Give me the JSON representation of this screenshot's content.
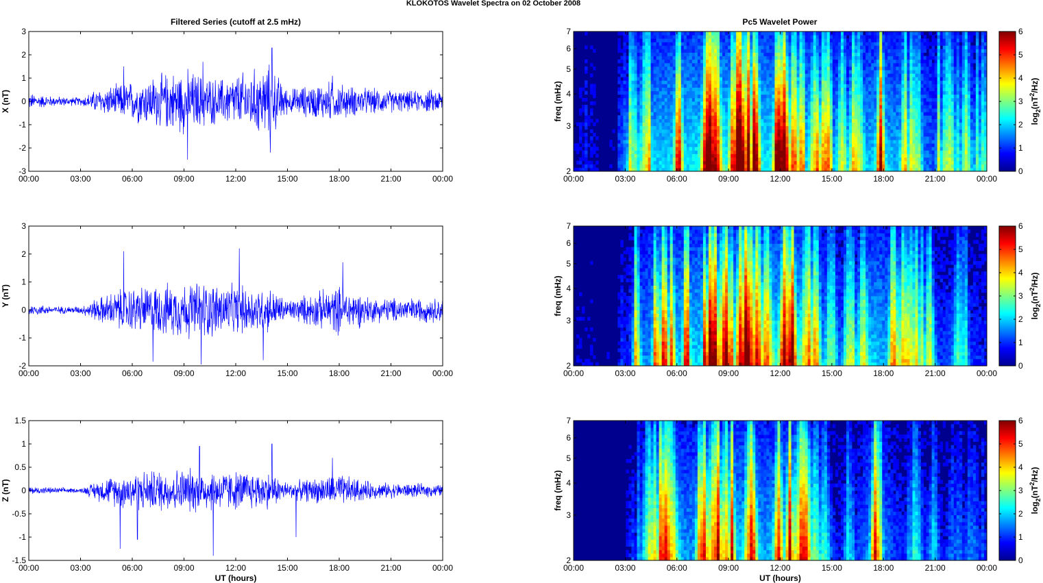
{
  "figure_title": "KLOKOTOS Wavelet Spectra on 02 October   2008",
  "left_title": "Filtered Series (cutoff at 2.5 mHz)",
  "right_title": "Pc5 Wavelet Power",
  "x_ticks": [
    "00:00",
    "03:00",
    "06:00",
    "09:00",
    "12:00",
    "15:00",
    "18:00",
    "21:00",
    "00:00"
  ],
  "x_label": "UT (hours)",
  "freq_label": "freq (mHz)",
  "freq_ticks": [
    "2",
    "3",
    "4",
    "5",
    "6",
    "7"
  ],
  "colorbar_label_main": "log",
  "colorbar_label_sub": "2",
  "colorbar_label_open": "(nT",
  "colorbar_label_sup": "2",
  "colorbar_label_close": "/Hz)",
  "colorbar_ticks": [
    "0",
    "1",
    "2",
    "3",
    "4",
    "5",
    "6"
  ],
  "colors": {
    "series_line": "#0000ff",
    "colormap": [
      "#00008f",
      "#0000ff",
      "#0080ff",
      "#00ffff",
      "#80ff80",
      "#ffff00",
      "#ff8000",
      "#ff0000",
      "#800000"
    ]
  },
  "chart_data": [
    {
      "type": "line",
      "panel": "X",
      "title": "Filtered Series (cutoff at 2.5 mHz)",
      "ylabel": "X (nT)",
      "xlabel": "",
      "xlim": [
        0,
        24
      ],
      "ylim": [
        -3,
        3
      ],
      "yticks": [
        "3",
        "2",
        "1",
        "0",
        "-1",
        "-2",
        "-3"
      ],
      "envelope": [
        {
          "x": 0,
          "amp": 0.4
        },
        {
          "x": 1.5,
          "amp": 0.25
        },
        {
          "x": 3,
          "amp": 0.2
        },
        {
          "x": 4,
          "amp": 0.6
        },
        {
          "x": 5.5,
          "amp": 0.9
        },
        {
          "x": 7,
          "amp": 1.2
        },
        {
          "x": 9,
          "amp": 1.6
        },
        {
          "x": 11,
          "amp": 1.1
        },
        {
          "x": 14,
          "amp": 1.8
        },
        {
          "x": 15,
          "amp": 0.6
        },
        {
          "x": 17.5,
          "amp": 1.0
        },
        {
          "x": 19,
          "amp": 0.7
        },
        {
          "x": 22,
          "amp": 0.5
        },
        {
          "x": 24,
          "amp": 0.6
        }
      ],
      "peaks": [
        {
          "x": 5.5,
          "y": 1.5
        },
        {
          "x": 9.2,
          "y": -2.5
        },
        {
          "x": 10.1,
          "y": 1.7
        },
        {
          "x": 14.1,
          "y": 2.3
        },
        {
          "x": 14.0,
          "y": -2.2
        },
        {
          "x": 17.6,
          "y": 1.1
        }
      ]
    },
    {
      "type": "line",
      "panel": "Y",
      "title": "",
      "ylabel": "Y (nT)",
      "xlabel": "",
      "xlim": [
        0,
        24
      ],
      "ylim": [
        -2,
        3
      ],
      "yticks": [
        "3",
        "2",
        "1",
        "0",
        "-1",
        "-2"
      ],
      "envelope": [
        {
          "x": 0,
          "amp": 0.25
        },
        {
          "x": 1.5,
          "amp": 0.15
        },
        {
          "x": 3,
          "amp": 0.15
        },
        {
          "x": 4,
          "amp": 0.5
        },
        {
          "x": 5.5,
          "amp": 0.9
        },
        {
          "x": 7,
          "amp": 1.0
        },
        {
          "x": 10,
          "amp": 1.2
        },
        {
          "x": 12,
          "amp": 1.0
        },
        {
          "x": 14,
          "amp": 0.9
        },
        {
          "x": 15,
          "amp": 0.4
        },
        {
          "x": 18,
          "amp": 1.0
        },
        {
          "x": 20,
          "amp": 0.5
        },
        {
          "x": 24,
          "amp": 0.5
        }
      ],
      "peaks": [
        {
          "x": 5.5,
          "y": 2.1
        },
        {
          "x": 7.2,
          "y": -1.85
        },
        {
          "x": 10.0,
          "y": -1.95
        },
        {
          "x": 12.2,
          "y": 2.2
        },
        {
          "x": 13.6,
          "y": -1.8
        },
        {
          "x": 18.2,
          "y": 1.7
        }
      ]
    },
    {
      "type": "line",
      "panel": "Z",
      "title": "",
      "ylabel": "Z (nT)",
      "xlabel": "UT (hours)",
      "xlim": [
        0,
        24
      ],
      "ylim": [
        -1.5,
        1.5
      ],
      "yticks": [
        "1.5",
        "1",
        "0.5",
        "0",
        "-0.5",
        "-1",
        "-1.5"
      ],
      "envelope": [
        {
          "x": 0,
          "amp": 0.1
        },
        {
          "x": 3,
          "amp": 0.05
        },
        {
          "x": 4,
          "amp": 0.25
        },
        {
          "x": 5.5,
          "amp": 0.45
        },
        {
          "x": 7,
          "amp": 0.5
        },
        {
          "x": 9,
          "amp": 0.55
        },
        {
          "x": 11,
          "amp": 0.5
        },
        {
          "x": 14,
          "amp": 0.45
        },
        {
          "x": 15,
          "amp": 0.2
        },
        {
          "x": 18,
          "amp": 0.4
        },
        {
          "x": 20,
          "amp": 0.2
        },
        {
          "x": 24,
          "amp": 0.15
        }
      ],
      "peaks": [
        {
          "x": 5.3,
          "y": -1.25
        },
        {
          "x": 6.3,
          "y": -1.05
        },
        {
          "x": 9.9,
          "y": 0.95
        },
        {
          "x": 10.7,
          "y": -1.4
        },
        {
          "x": 14.1,
          "y": 1.0
        },
        {
          "x": 15.5,
          "y": -1.0
        },
        {
          "x": 17.6,
          "y": 0.7
        }
      ]
    },
    {
      "type": "heatmap",
      "panel": "X",
      "title": "Pc5 Wavelet Power",
      "ylabel": "freq (mHz)",
      "xlim": [
        0,
        24
      ],
      "ylim": [
        2,
        7
      ],
      "yscale": "log",
      "clim": [
        0,
        6
      ],
      "colorbar_label": "log2(nT^2/Hz)",
      "activity": [
        {
          "x": 0,
          "level": 1.0
        },
        {
          "x": 2.5,
          "level": 0.6
        },
        {
          "x": 3.5,
          "level": 4.0
        },
        {
          "x": 5,
          "level": 5.5
        },
        {
          "x": 7,
          "level": 6.0
        },
        {
          "x": 10,
          "level": 6.2
        },
        {
          "x": 13,
          "level": 6.0
        },
        {
          "x": 14.5,
          "level": 4.5
        },
        {
          "x": 16,
          "level": 3.5
        },
        {
          "x": 17.5,
          "level": 5.5
        },
        {
          "x": 19,
          "level": 5.0
        },
        {
          "x": 21,
          "level": 3.5
        },
        {
          "x": 24,
          "level": 3.0
        }
      ]
    },
    {
      "type": "heatmap",
      "panel": "Y",
      "title": "",
      "ylabel": "freq (mHz)",
      "xlim": [
        0,
        24
      ],
      "ylim": [
        2,
        7
      ],
      "yscale": "log",
      "clim": [
        0,
        6
      ],
      "colorbar_label": "log2(nT^2/Hz)",
      "activity": [
        {
          "x": 0,
          "level": 0.6
        },
        {
          "x": 2.5,
          "level": 0.4
        },
        {
          "x": 3.5,
          "level": 3.5
        },
        {
          "x": 5,
          "level": 5.2
        },
        {
          "x": 7,
          "level": 5.6
        },
        {
          "x": 10,
          "level": 6.0
        },
        {
          "x": 13,
          "level": 6.0
        },
        {
          "x": 14.5,
          "level": 4.0
        },
        {
          "x": 16,
          "level": 3.0
        },
        {
          "x": 17.5,
          "level": 5.5
        },
        {
          "x": 19,
          "level": 4.0
        },
        {
          "x": 21,
          "level": 3.0
        },
        {
          "x": 24,
          "level": 2.5
        }
      ]
    },
    {
      "type": "heatmap",
      "panel": "Z",
      "title": "",
      "ylabel": "freq (mHz)",
      "xlabel": "UT (hours)",
      "xlim": [
        0,
        24
      ],
      "ylim": [
        2,
        7
      ],
      "yscale": "log",
      "clim": [
        0,
        6
      ],
      "colorbar_label": "log2(nT^2/Hz)",
      "activity": [
        {
          "x": 0,
          "level": 0.2
        },
        {
          "x": 3,
          "level": 0.3
        },
        {
          "x": 4,
          "level": 2.5
        },
        {
          "x": 5.3,
          "level": 4.8
        },
        {
          "x": 7,
          "level": 4.5
        },
        {
          "x": 9,
          "level": 5.5
        },
        {
          "x": 11,
          "level": 4.8
        },
        {
          "x": 13.5,
          "level": 5.5
        },
        {
          "x": 14.5,
          "level": 2.5
        },
        {
          "x": 16,
          "level": 2.0
        },
        {
          "x": 17.5,
          "level": 4.8
        },
        {
          "x": 19,
          "level": 2.5
        },
        {
          "x": 21,
          "level": 2.0
        },
        {
          "x": 24,
          "level": 1.0
        }
      ]
    }
  ]
}
